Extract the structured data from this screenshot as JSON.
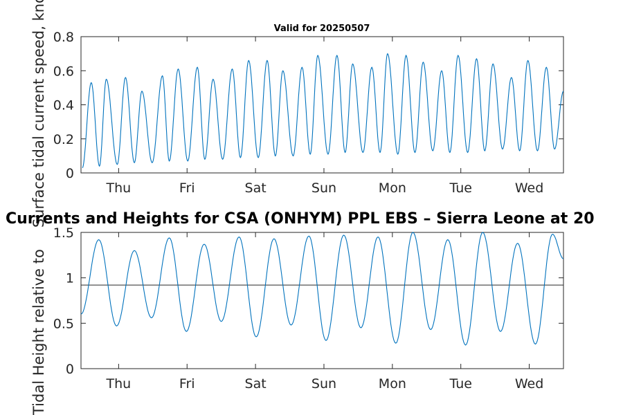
{
  "chart_data": [
    {
      "type": "line",
      "title": "Valid for 20250507",
      "ylabel": "Surface tidal current speed, knots",
      "ylim": [
        0,
        0.8
      ],
      "yticks": [
        0,
        0.2,
        0.4,
        0.6,
        0.8
      ],
      "ytick_labels": [
        "0",
        "0.2",
        "0.4",
        "0.6",
        "0.8"
      ],
      "xlim": [
        0.45,
        7.5
      ],
      "xticks": [
        1,
        2,
        3,
        4,
        5,
        6,
        7
      ],
      "xtick_labels": [
        "Thu",
        "Fri",
        "Sat",
        "Sun",
        "Mon",
        "Tue",
        "Wed"
      ],
      "grid": false,
      "color": "#0072BD",
      "series": [
        {
          "peaks_x": [
            0.6,
            0.82,
            1.1,
            1.34,
            1.64,
            1.87,
            2.15,
            2.38,
            2.66,
            2.9,
            3.17,
            3.4,
            3.68,
            3.91,
            4.19,
            4.42,
            4.7,
            4.93,
            5.2,
            5.45,
            5.72,
            5.96,
            6.23,
            6.47,
            6.74,
            6.98,
            7.25
          ],
          "peaks_y": [
            0.53,
            0.55,
            0.56,
            0.48,
            0.57,
            0.61,
            0.62,
            0.55,
            0.61,
            0.66,
            0.66,
            0.6,
            0.62,
            0.69,
            0.69,
            0.64,
            0.62,
            0.7,
            0.69,
            0.65,
            0.6,
            0.69,
            0.67,
            0.64,
            0.56,
            0.66,
            0.62
          ],
          "troughs_x": [
            0.47,
            0.72,
            0.98,
            1.23,
            1.49,
            1.74,
            2.01,
            2.26,
            2.52,
            2.78,
            3.04,
            3.29,
            3.55,
            3.8,
            4.06,
            4.31,
            4.57,
            4.82,
            5.08,
            5.33,
            5.59,
            5.84,
            6.1,
            6.35,
            6.61,
            6.86,
            7.12,
            7.37
          ],
          "troughs_y": [
            0.03,
            0.04,
            0.05,
            0.06,
            0.06,
            0.07,
            0.07,
            0.08,
            0.08,
            0.09,
            0.09,
            0.1,
            0.1,
            0.11,
            0.11,
            0.12,
            0.12,
            0.12,
            0.11,
            0.12,
            0.13,
            0.12,
            0.12,
            0.13,
            0.14,
            0.13,
            0.13,
            0.14
          ],
          "end": [
            7.5,
            0.48
          ]
        }
      ]
    },
    {
      "type": "line",
      "title": "Currents and Heights for CSA (ONHYM) PPL EBS  – Sierra Leone at 20",
      "ylabel": "Tidal Height relative to",
      "ylim": [
        0,
        1.5
      ],
      "yticks": [
        0,
        0.5,
        1,
        1.5
      ],
      "ytick_labels": [
        "0",
        "0.5",
        "1",
        "1.5"
      ],
      "xlim": [
        0.45,
        7.5
      ],
      "xticks": [
        1,
        2,
        3,
        4,
        5,
        6,
        7
      ],
      "xtick_labels": [
        "Thu",
        "Fri",
        "Sat",
        "Sun",
        "Mon",
        "Tue",
        "Wed"
      ],
      "grid": false,
      "color": "#0072BD",
      "reference_line": 0.92,
      "series": [
        {
          "start": [
            0.45,
            0.6
          ],
          "highs_x": [
            0.71,
            1.23,
            1.74,
            2.25,
            2.76,
            3.27,
            3.78,
            4.29,
            4.79,
            5.3,
            5.81,
            6.32,
            6.83,
            7.34
          ],
          "highs_y": [
            1.42,
            1.3,
            1.44,
            1.37,
            1.45,
            1.43,
            1.46,
            1.47,
            1.45,
            1.5,
            1.42,
            1.5,
            1.38,
            1.48
          ],
          "lows_x": [
            0.97,
            1.48,
            1.99,
            2.5,
            3.01,
            3.52,
            4.03,
            4.54,
            5.05,
            5.56,
            6.07,
            6.58,
            7.09
          ],
          "lows_y": [
            0.47,
            0.56,
            0.41,
            0.52,
            0.35,
            0.48,
            0.31,
            0.45,
            0.28,
            0.43,
            0.26,
            0.41,
            0.27
          ],
          "end": [
            7.5,
            1.21
          ]
        }
      ]
    }
  ]
}
